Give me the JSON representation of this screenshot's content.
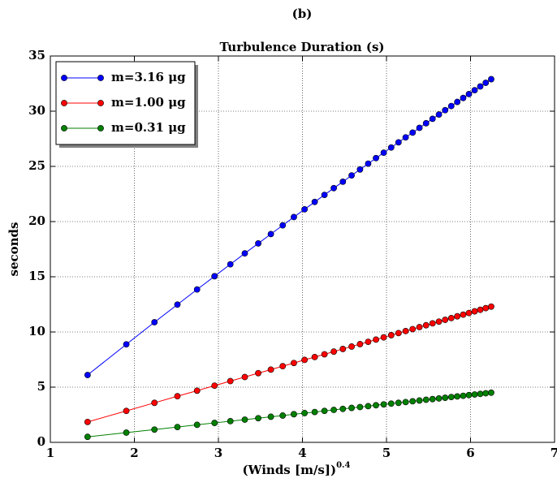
{
  "chart_data": {
    "type": "line",
    "suptitle": "(b)",
    "title": "Turbulence Duration (s)",
    "xlabel": "(Winds [m/s])",
    "xlabel_exponent": "0.4",
    "ylabel": "seconds",
    "x": [
      1.443,
      1.904,
      2.239,
      2.512,
      2.746,
      2.954,
      3.142,
      3.314,
      3.474,
      3.624,
      3.765,
      3.898,
      4.025,
      4.146,
      4.262,
      4.373,
      4.481,
      4.585,
      4.685,
      4.782,
      4.875,
      4.967,
      5.056,
      5.143,
      5.228,
      5.311,
      5.392,
      5.471,
      5.548,
      5.624,
      5.698,
      5.771,
      5.842,
      5.913,
      5.981,
      6.049,
      6.116,
      6.181,
      6.246
    ],
    "series": [
      {
        "name": "m=3.16 μg",
        "color": "#0000ff",
        "values": [
          6.1,
          8.88,
          10.88,
          12.48,
          13.85,
          15.05,
          16.13,
          17.12,
          18.02,
          18.87,
          19.66,
          20.41,
          21.11,
          21.78,
          22.42,
          23.03,
          23.61,
          24.18,
          24.72,
          25.25,
          25.75,
          26.24,
          26.71,
          27.18,
          27.63,
          28.06,
          28.49,
          28.91,
          29.31,
          29.7,
          30.09,
          30.47,
          30.84,
          31.2,
          31.55,
          31.9,
          32.24,
          32.57,
          32.9
        ]
      },
      {
        "name": "m=1.00 μg",
        "color": "#ff0000",
        "values": [
          1.85,
          2.85,
          3.58,
          4.18,
          4.68,
          5.14,
          5.55,
          5.92,
          6.27,
          6.59,
          6.9,
          7.19,
          7.47,
          7.73,
          7.98,
          8.22,
          8.46,
          8.68,
          8.9,
          9.11,
          9.31,
          9.51,
          9.71,
          9.9,
          10.08,
          10.26,
          10.44,
          10.61,
          10.78,
          10.94,
          11.1,
          11.26,
          11.42,
          11.57,
          11.72,
          11.87,
          12.01,
          12.16,
          12.3
        ]
      },
      {
        "name": "m=0.31 μg",
        "color": "#008000",
        "values": [
          0.5,
          0.88,
          1.16,
          1.39,
          1.59,
          1.76,
          1.92,
          2.06,
          2.19,
          2.32,
          2.43,
          2.55,
          2.65,
          2.75,
          2.85,
          2.94,
          3.03,
          3.12,
          3.2,
          3.28,
          3.36,
          3.44,
          3.51,
          3.58,
          3.65,
          3.72,
          3.79,
          3.86,
          3.92,
          3.98,
          4.04,
          4.11,
          4.16,
          4.22,
          4.28,
          4.34,
          4.39,
          4.45,
          4.5
        ]
      }
    ],
    "xlim": [
      1,
      7
    ],
    "xticks": [
      1,
      2,
      3,
      4,
      5,
      6,
      7
    ],
    "ylim": [
      0,
      35
    ],
    "yticks": [
      0,
      5,
      10,
      15,
      20,
      25,
      30,
      35
    ],
    "grid": true,
    "legend": "upper left"
  }
}
